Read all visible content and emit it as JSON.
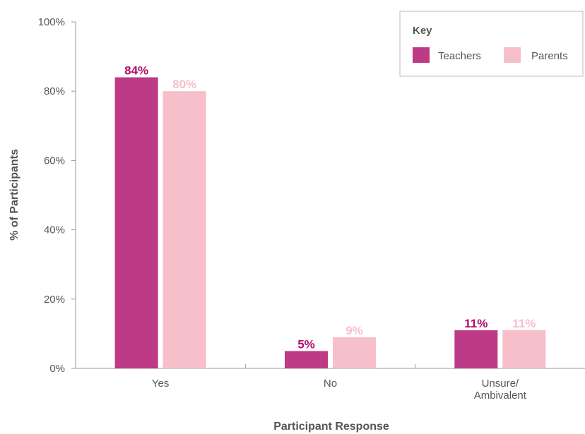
{
  "chart_data": {
    "type": "bar",
    "categories": [
      [
        "Yes"
      ],
      [
        "No"
      ],
      [
        "Unsure/",
        "Ambivalent"
      ]
    ],
    "series": [
      {
        "name": "Teachers",
        "values": [
          84,
          5,
          11
        ],
        "labels": [
          "84%",
          "5%",
          "11%"
        ],
        "color": "#bc3a86",
        "label_color": "#b00c6e"
      },
      {
        "name": "Parents",
        "values": [
          80,
          9,
          11
        ],
        "labels": [
          "80%",
          "9%",
          "11%"
        ],
        "color": "#f7bfca",
        "label_color": "#f7bfca"
      }
    ],
    "xlabel": "Participant Response",
    "ylabel": "% of Participants",
    "ylim": [
      0,
      100
    ],
    "yticks": [
      {
        "value": 0,
        "label": "0%"
      },
      {
        "value": 20,
        "label": "20%"
      },
      {
        "value": 40,
        "label": "40%"
      },
      {
        "value": 60,
        "label": "60%"
      },
      {
        "value": 80,
        "label": "80%"
      },
      {
        "value": 100,
        "label": "100%"
      }
    ],
    "legend": {
      "title": "Key",
      "placement": "top-right"
    },
    "grid": false,
    "axis_color": "#999999"
  }
}
